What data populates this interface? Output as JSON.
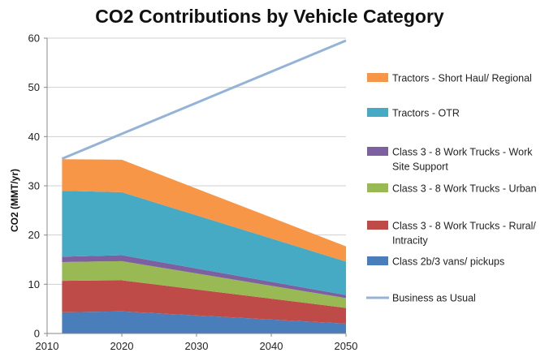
{
  "chart_data": {
    "type": "area",
    "title": "CO2 Contributions by Vehicle Category",
    "xlabel": "",
    "ylabel": "CO2 (MMT/yr)",
    "xlim": [
      2010,
      2050
    ],
    "ylim": [
      0,
      60
    ],
    "x_ticks": [
      2010,
      2020,
      2030,
      2040,
      2050
    ],
    "y_ticks": [
      0,
      10,
      20,
      30,
      40,
      50,
      60
    ],
    "grid": "horizontal",
    "legend_position": "right",
    "x": [
      2012,
      2020,
      2050
    ],
    "stacked_series": [
      {
        "name": "Class 2b/3 vans/ pickups",
        "color": "#4a7ebb",
        "values": [
          4.3,
          4.5,
          2.0
        ]
      },
      {
        "name": "Class 3 - 8 Work Trucks - Rural/ Intracity",
        "color": "#be4b48",
        "values": [
          6.4,
          6.3,
          3.2
        ]
      },
      {
        "name": "Class 3 - 8 Work Trucks - Urban",
        "color": "#98b954",
        "values": [
          3.8,
          3.9,
          2.0
        ]
      },
      {
        "name": "Class 3 - 8 Work Trucks - Work Site Support",
        "color": "#7d60a0",
        "values": [
          1.1,
          1.2,
          0.6
        ]
      },
      {
        "name": "Tractors - OTR",
        "color": "#46aac5",
        "values": [
          13.4,
          12.8,
          6.8
        ]
      },
      {
        "name": "Tractors - Short Haul/ Regional",
        "color": "#f79646",
        "values": [
          6.4,
          6.6,
          3.1
        ]
      }
    ],
    "line_series": [
      {
        "name": "Business as Usual",
        "color": "#95b3d7",
        "x": [
          2012,
          2050
        ],
        "values": [
          35.5,
          59.5
        ]
      }
    ],
    "legend": [
      {
        "label_lines": [
          "Tractors - Short Haul/ Regional"
        ],
        "color": "#f79646",
        "kind": "box"
      },
      {
        "label_lines": [
          "Tractors - OTR"
        ],
        "color": "#46aac5",
        "kind": "box"
      },
      {
        "label_lines": [
          "Class 3 - 8 Work Trucks - Work",
          "Site Support"
        ],
        "color": "#7d60a0",
        "kind": "box"
      },
      {
        "label_lines": [
          "Class 3 - 8 Work Trucks - Urban"
        ],
        "color": "#98b954",
        "kind": "box"
      },
      {
        "label_lines": [
          "Class 3 - 8 Work Trucks - Rural/",
          "Intracity"
        ],
        "color": "#be4b48",
        "kind": "box"
      },
      {
        "label_lines": [
          "Class 2b/3 vans/ pickups"
        ],
        "color": "#4a7ebb",
        "kind": "box"
      },
      {
        "label_lines": [
          "Business as Usual"
        ],
        "color": "#95b3d7",
        "kind": "line"
      }
    ]
  }
}
